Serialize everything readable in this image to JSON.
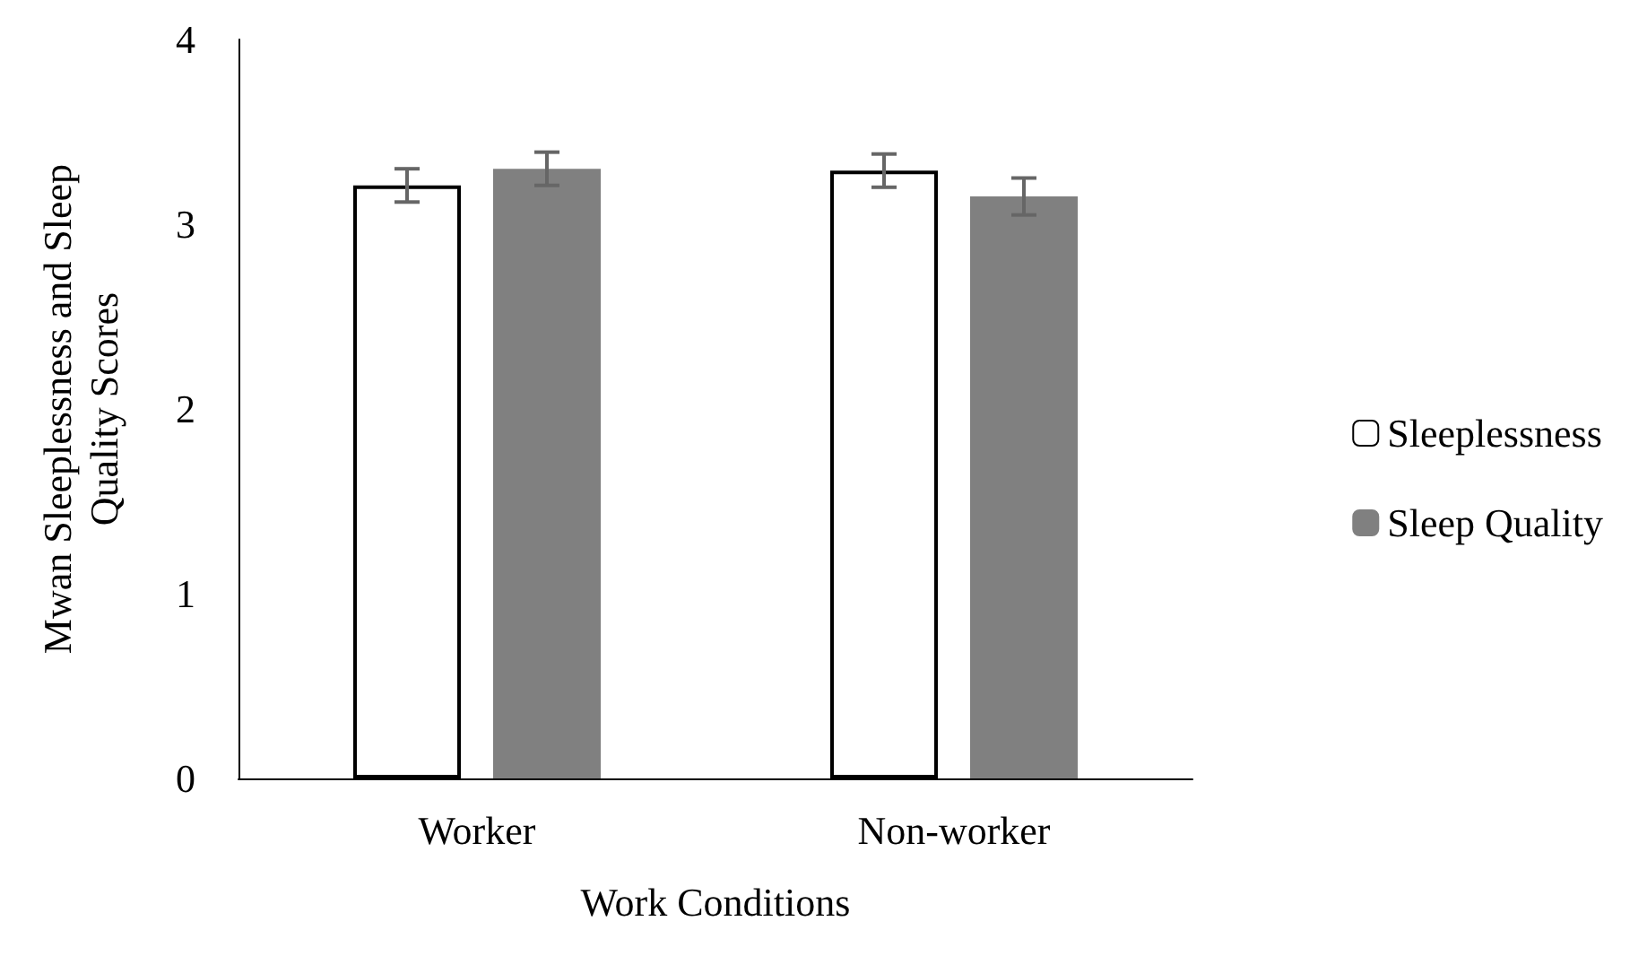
{
  "chart_data": {
    "type": "bar",
    "xlabel": "Work Conditions",
    "ylabel": "Mwan Sleeplessness and Sleep\nQuality Scores",
    "categories": [
      "Worker",
      "Non-worker"
    ],
    "series": [
      {
        "name": "Sleeplessness",
        "color": "#ffffff",
        "values": [
          3.21,
          3.29
        ],
        "errors": [
          0.09,
          0.09
        ]
      },
      {
        "name": "Sleep Quality",
        "color": "#808080",
        "values": [
          3.3,
          3.15
        ],
        "errors": [
          0.09,
          0.1
        ]
      }
    ],
    "ylim": [
      0,
      4
    ],
    "yticks": [
      0,
      1,
      2,
      3,
      4
    ],
    "grid": false,
    "legend": "right"
  }
}
